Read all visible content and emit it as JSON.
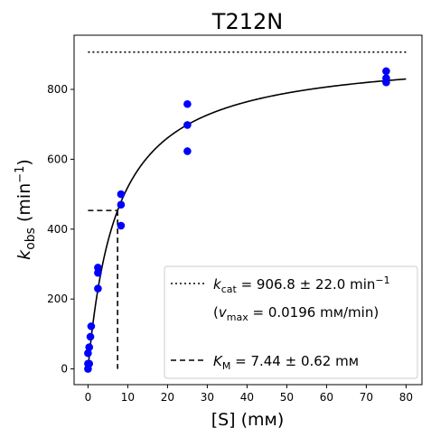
{
  "chart_data": {
    "type": "scatter",
    "title": "T212N",
    "xlabel": "[S] (mм)",
    "ylabel": {
      "main": "k",
      "sub": "obs",
      "unit_pre": " (min",
      "unit_sup": "−1",
      "unit_post": ")"
    },
    "xlim": [
      -3.5,
      84
    ],
    "ylim": [
      -45,
      955
    ],
    "xticks": [
      0,
      10,
      20,
      30,
      40,
      50,
      60,
      70,
      80
    ],
    "yticks": [
      0,
      200,
      400,
      600,
      800
    ],
    "grid": false,
    "legend_position": "bottom-right",
    "series": [
      {
        "name_parts": {
          "pre": "",
          "main": "k",
          "sub": "cat",
          "rest": " = 906.8 ± 22.0 min",
          "sup": "−1"
        },
        "style": "dotted",
        "kind": "hline",
        "y": 906.8,
        "x_range": [
          0,
          80
        ],
        "color": "#000000"
      },
      {
        "name_parts": {
          "pre": "(",
          "main": "v",
          "sub": "max",
          "rest": " = 0.0196 mм/min)"
        },
        "kind": "legend-text-only"
      },
      {
        "name_parts": {
          "pre": "",
          "main": "K",
          "sub": "M",
          "rest": " = 7.44 ± 0.62 mм"
        },
        "style": "dashed",
        "kind": "km-marker",
        "km": 7.44,
        "half": 453.4,
        "color": "#000000"
      },
      {
        "kind": "fit-curve",
        "model": "michaelis-menten",
        "vmax": 906.8,
        "km": 7.44,
        "x_range": [
          0,
          80
        ],
        "color": "#000000"
      },
      {
        "kind": "points",
        "color": "#0000ff",
        "x": [
          0,
          0,
          0,
          0.3,
          0.3,
          0.6,
          0.8,
          2.5,
          2.5,
          2.5,
          8.3,
          8.3,
          8.3,
          25,
          25,
          25,
          75,
          75,
          75
        ],
        "y": [
          0,
          15,
          45,
          62,
          15,
          92,
          122,
          290,
          275,
          230,
          500,
          470,
          410,
          758,
          698,
          623,
          852,
          832,
          820
        ]
      }
    ]
  }
}
